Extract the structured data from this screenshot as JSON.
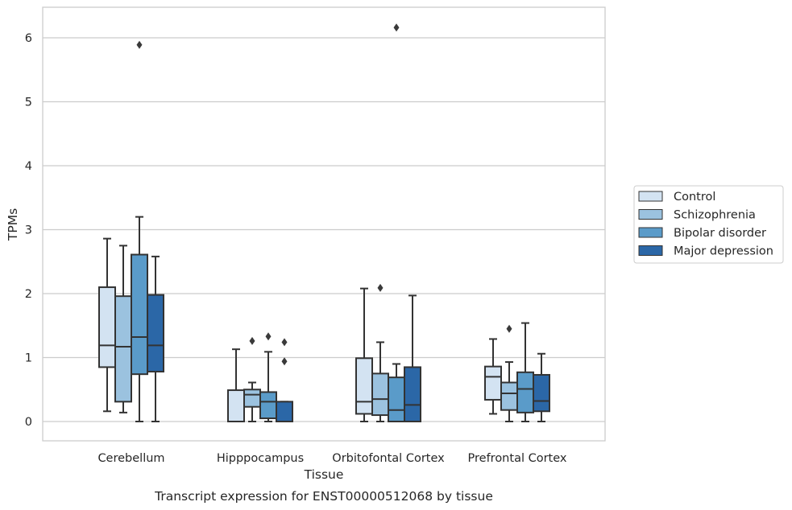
{
  "chart_data": {
    "type": "boxplot",
    "xlabel": "Tissue",
    "ylabel": "TPMs",
    "caption": "Transcript expression for ENST00000512068 by tissue",
    "categories": [
      "Cerebellum",
      "Hipppocampus",
      "Orbitofontal Cortex",
      "Prefrontal Cortex"
    ],
    "ylim": [
      -0.3,
      6.5
    ],
    "yticks": [
      0,
      1,
      2,
      3,
      4,
      5,
      6
    ],
    "grid": true,
    "legend_position": "right",
    "series": [
      {
        "name": "Control",
        "color": "#d3e3f2",
        "boxes": [
          {
            "whislo": 0.16,
            "q1": 0.85,
            "med": 1.19,
            "q3": 2.1,
            "whishi": 2.86,
            "fliers": []
          },
          {
            "whislo": 0.0,
            "q1": 0.0,
            "med": 0.0,
            "q3": 0.49,
            "whishi": 1.13,
            "fliers": []
          },
          {
            "whislo": 0.0,
            "q1": 0.12,
            "med": 0.31,
            "q3": 0.99,
            "whishi": 2.08,
            "fliers": []
          },
          {
            "whislo": 0.12,
            "q1": 0.34,
            "med": 0.7,
            "q3": 0.86,
            "whishi": 1.29,
            "fliers": []
          }
        ]
      },
      {
        "name": "Schizophrenia",
        "color": "#9bc2df",
        "boxes": [
          {
            "whislo": 0.14,
            "q1": 0.31,
            "med": 1.17,
            "q3": 1.96,
            "whishi": 2.75,
            "fliers": []
          },
          {
            "whislo": 0.0,
            "q1": 0.23,
            "med": 0.42,
            "q3": 0.5,
            "whishi": 0.61,
            "fliers": [
              1.26
            ]
          },
          {
            "whislo": 0.0,
            "q1": 0.1,
            "med": 0.35,
            "q3": 0.75,
            "whishi": 1.24,
            "fliers": [
              2.09
            ]
          },
          {
            "whislo": 0.0,
            "q1": 0.18,
            "med": 0.44,
            "q3": 0.61,
            "whishi": 0.93,
            "fliers": [
              1.45
            ]
          }
        ]
      },
      {
        "name": "Bipolar disorder",
        "color": "#5a9bc9",
        "boxes": [
          {
            "whislo": 0.0,
            "q1": 0.74,
            "med": 1.32,
            "q3": 2.61,
            "whishi": 3.2,
            "fliers": [
              5.89
            ]
          },
          {
            "whislo": 0.0,
            "q1": 0.05,
            "med": 0.31,
            "q3": 0.46,
            "whishi": 1.09,
            "fliers": [
              1.33
            ]
          },
          {
            "whislo": 0.0,
            "q1": 0.0,
            "med": 0.18,
            "q3": 0.69,
            "whishi": 0.9,
            "fliers": [
              6.16
            ]
          },
          {
            "whislo": 0.0,
            "q1": 0.14,
            "med": 0.51,
            "q3": 0.77,
            "whishi": 1.54,
            "fliers": []
          }
        ]
      },
      {
        "name": "Major depression",
        "color": "#2b67a7",
        "boxes": [
          {
            "whislo": 0.0,
            "q1": 0.78,
            "med": 1.19,
            "q3": 1.98,
            "whishi": 2.58,
            "fliers": []
          },
          {
            "whislo": 0.0,
            "q1": 0.0,
            "med": 0.0,
            "q3": 0.31,
            "whishi": 0.31,
            "fliers": [
              1.24,
              0.94
            ]
          },
          {
            "whislo": 0.0,
            "q1": 0.0,
            "med": 0.26,
            "q3": 0.85,
            "whishi": 1.97,
            "fliers": []
          },
          {
            "whislo": 0.0,
            "q1": 0.16,
            "med": 0.32,
            "q3": 0.73,
            "whishi": 1.06,
            "fliers": []
          }
        ]
      }
    ]
  }
}
